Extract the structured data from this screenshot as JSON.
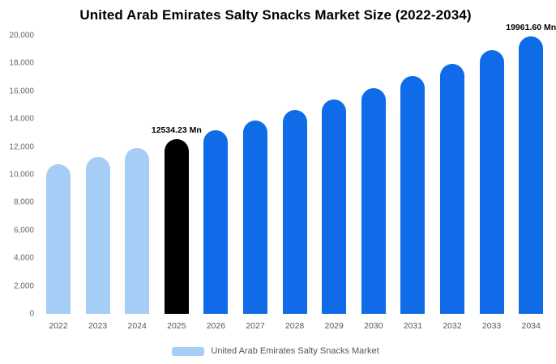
{
  "chart_data": {
    "type": "bar",
    "title": "United Arab Emirates Salty Snacks Market Size (2022-2034)",
    "categories": [
      "2022",
      "2023",
      "2024",
      "2025",
      "2026",
      "2027",
      "2028",
      "2029",
      "2030",
      "2031",
      "2032",
      "2033",
      "2034"
    ],
    "values": [
      10732,
      11302,
      11902,
      12534.23,
      13199,
      13900,
      14637,
      15414,
      16232,
      17093,
      17950,
      18956,
      19961.6
    ],
    "unit": "Mn",
    "ylim": [
      0,
      20000
    ],
    "ytick_step": 2000,
    "ytick_labels": [
      "0",
      "2,000",
      "4,000",
      "6,000",
      "8,000",
      "10,000",
      "12,000",
      "14,000",
      "16,000",
      "18,000",
      "20,000"
    ],
    "grid": false,
    "bar_colors": [
      "#a5cdf6",
      "#a5cdf6",
      "#a5cdf6",
      "#000000",
      "#0f6be8",
      "#0f6be8",
      "#0f6be8",
      "#0f6be8",
      "#0f6be8",
      "#0f6be8",
      "#0f6be8",
      "#0f6be8",
      "#0f6be8"
    ],
    "color_roles": {
      "historical": "#a5cdf6",
      "base_year": "#000000",
      "forecast": "#0f6be8"
    },
    "annotations": [
      {
        "index": 3,
        "text": "12534.23 Mn"
      },
      {
        "index": 12,
        "text": "19961.60 Mn"
      }
    ],
    "legend": [
      {
        "label": "United Arab Emirates Salty Snacks Market",
        "color": "#a5cdf6"
      }
    ],
    "legend_position": "bottom-center"
  }
}
